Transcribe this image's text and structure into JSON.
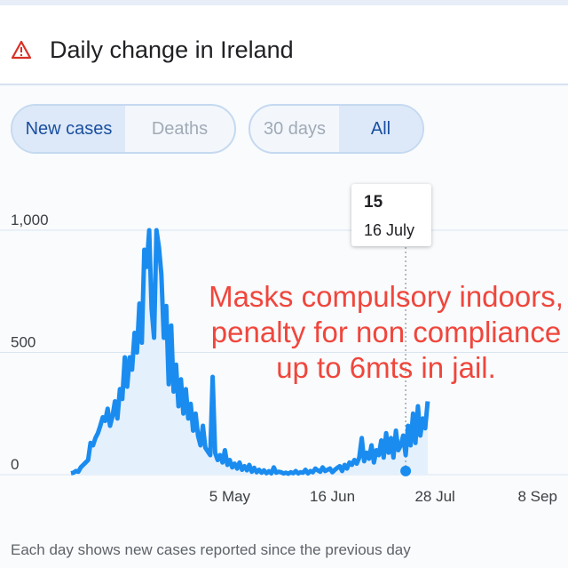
{
  "header": {
    "title": "Daily change in Ireland",
    "icon": "warning-triangle-icon",
    "icon_color": "#d93025"
  },
  "controls": {
    "metric": {
      "options": [
        "New cases",
        "Deaths"
      ],
      "selected": "New cases"
    },
    "range": {
      "options": [
        "30 days",
        "All"
      ],
      "selected": "All"
    }
  },
  "tooltip": {
    "value": "15",
    "date": "16 July"
  },
  "annotation": "Masks compulsory indoors, penalty for non compliance up to 6mts in jail.",
  "footer": "Each day shows new cases reported since the previous day",
  "chart_data": {
    "type": "area",
    "title": "",
    "xlabel": "",
    "ylabel": "",
    "ylim": [
      0,
      1000
    ],
    "y_ticks": [
      "0",
      "500",
      "1,000"
    ],
    "x_ticks": [
      "5 May",
      "16 Jun",
      "28 Jul",
      "8 Sep"
    ],
    "x_start": "2020-03-01",
    "x_end": "2020-09-15",
    "line_color": "#1a8cf0",
    "fill_color": "#e4f0fc",
    "grid": true,
    "highlight": {
      "date": "2020-07-16",
      "value": 15
    },
    "series": [
      {
        "values": [
          [
            0,
            6
          ],
          [
            1,
            8
          ],
          [
            2,
            15
          ],
          [
            3,
            12
          ],
          [
            4,
            30
          ],
          [
            5,
            40
          ],
          [
            6,
            50
          ],
          [
            7,
            60
          ],
          [
            8,
            130
          ],
          [
            9,
            120
          ],
          [
            10,
            150
          ],
          [
            11,
            170
          ],
          [
            12,
            200
          ],
          [
            13,
            235
          ],
          [
            14,
            220
          ],
          [
            15,
            270
          ],
          [
            16,
            200
          ],
          [
            17,
            240
          ],
          [
            18,
            300
          ],
          [
            19,
            230
          ],
          [
            20,
            350
          ],
          [
            21,
            310
          ],
          [
            22,
            480
          ],
          [
            23,
            360
          ],
          [
            24,
            480
          ],
          [
            25,
            430
          ],
          [
            26,
            580
          ],
          [
            27,
            500
          ],
          [
            28,
            700
          ],
          [
            29,
            540
          ],
          [
            30,
            920
          ],
          [
            31,
            850
          ],
          [
            32,
            1000
          ],
          [
            33,
            680
          ],
          [
            34,
            560
          ],
          [
            35,
            1000
          ],
          [
            36,
            930
          ],
          [
            37,
            820
          ],
          [
            38,
            560
          ],
          [
            39,
            690
          ],
          [
            40,
            370
          ],
          [
            41,
            610
          ],
          [
            42,
            340
          ],
          [
            43,
            450
          ],
          [
            44,
            280
          ],
          [
            45,
            390
          ],
          [
            46,
            250
          ],
          [
            47,
            350
          ],
          [
            48,
            230
          ],
          [
            49,
            290
          ],
          [
            50,
            180
          ],
          [
            51,
            250
          ],
          [
            52,
            160
          ],
          [
            53,
            120
          ],
          [
            54,
            200
          ],
          [
            55,
            110
          ],
          [
            56,
            95
          ],
          [
            57,
            80
          ],
          [
            58,
            400
          ],
          [
            59,
            90
          ],
          [
            60,
            60
          ],
          [
            61,
            80
          ],
          [
            62,
            50
          ],
          [
            63,
            100
          ],
          [
            64,
            40
          ],
          [
            65,
            60
          ],
          [
            66,
            30
          ],
          [
            67,
            45
          ],
          [
            68,
            25
          ],
          [
            69,
            50
          ],
          [
            70,
            20
          ],
          [
            71,
            35
          ],
          [
            72,
            18
          ],
          [
            73,
            40
          ],
          [
            74,
            12
          ],
          [
            75,
            28
          ],
          [
            76,
            10
          ],
          [
            77,
            20
          ],
          [
            78,
            8
          ],
          [
            79,
            18
          ],
          [
            80,
            6
          ],
          [
            81,
            14
          ],
          [
            82,
            5
          ],
          [
            83,
            30
          ],
          [
            84,
            8
          ],
          [
            85,
            12
          ],
          [
            86,
            10
          ],
          [
            87,
            5
          ],
          [
            88,
            8
          ],
          [
            89,
            4
          ],
          [
            90,
            10
          ],
          [
            91,
            6
          ],
          [
            92,
            15
          ],
          [
            93,
            5
          ],
          [
            94,
            10
          ],
          [
            95,
            8
          ],
          [
            96,
            20
          ],
          [
            97,
            5
          ],
          [
            98,
            15
          ],
          [
            99,
            10
          ],
          [
            100,
            25
          ],
          [
            101,
            18
          ],
          [
            102,
            12
          ],
          [
            103,
            30
          ],
          [
            104,
            15
          ],
          [
            105,
            20
          ],
          [
            106,
            25
          ],
          [
            107,
            10
          ],
          [
            108,
            20
          ],
          [
            109,
            28
          ],
          [
            110,
            35
          ],
          [
            111,
            15
          ],
          [
            112,
            40
          ],
          [
            113,
            25
          ],
          [
            114,
            50
          ],
          [
            115,
            40
          ],
          [
            116,
            60
          ],
          [
            117,
            45
          ],
          [
            118,
            70
          ],
          [
            119,
            150
          ],
          [
            120,
            55
          ],
          [
            121,
            90
          ],
          [
            122,
            65
          ],
          [
            123,
            120
          ],
          [
            124,
            50
          ],
          [
            125,
            100
          ],
          [
            126,
            80
          ],
          [
            127,
            140
          ],
          [
            128,
            70
          ],
          [
            129,
            170
          ],
          [
            130,
            90
          ],
          [
            131,
            150
          ],
          [
            132,
            70
          ],
          [
            133,
            180
          ],
          [
            134,
            100
          ],
          [
            135,
            120
          ],
          [
            136,
            160
          ],
          [
            137,
            80
          ],
          [
            138,
            200
          ],
          [
            139,
            120
          ],
          [
            140,
            250
          ],
          [
            141,
            130
          ],
          [
            142,
            280
          ],
          [
            143,
            160
          ],
          [
            144,
            230
          ],
          [
            145,
            190
          ],
          [
            146,
            300
          ]
        ]
      }
    ]
  }
}
